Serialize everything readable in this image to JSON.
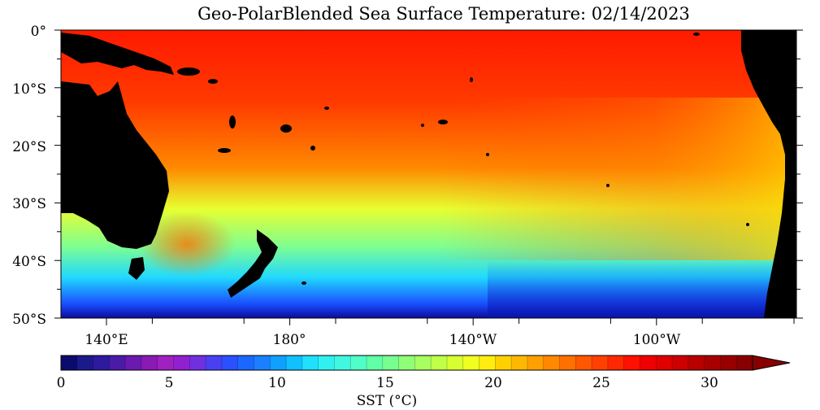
{
  "title": "Geo-PolarBlended Sea Surface Temperature: 02/14/2023",
  "lat_labels": [
    "0°",
    "10°S",
    "20°S",
    "30°S",
    "40°S",
    "50°S"
  ],
  "lon_labels": [
    "140°E",
    "180°",
    "140°W",
    "100°W"
  ],
  "colorbar": {
    "tick_labels": [
      "0",
      "5",
      "10",
      "15",
      "20",
      "25",
      "30"
    ],
    "label": "SST (°C)",
    "min": 0,
    "max": 32,
    "colors": [
      "#0b0b6e",
      "#1a1a8a",
      "#2e1a9e",
      "#4a1aa8",
      "#6a1aae",
      "#8a1ab4",
      "#a020c0",
      "#9020d0",
      "#7030e0",
      "#4a40f0",
      "#2a50ff",
      "#1a68ff",
      "#1a80ff",
      "#10a0ff",
      "#10c0ff",
      "#20e0ff",
      "#30f0f0",
      "#40f8e0",
      "#50ffc8",
      "#60ffa8",
      "#78ff90",
      "#90ff78",
      "#a8ff60",
      "#c0ff48",
      "#d8ff30",
      "#f0ff20",
      "#ffec10",
      "#ffd000",
      "#ffb800",
      "#ffa000",
      "#ff8800",
      "#ff7000",
      "#ff5800",
      "#ff4000",
      "#ff2800",
      "#ff1000",
      "#f00000",
      "#e00000",
      "#cc0000",
      "#b80000",
      "#a80000",
      "#980000",
      "#880000"
    ]
  },
  "map_colors": {
    "land": "#000000",
    "warm": "#ff1a00",
    "orange": "#ff6a00",
    "yellow": "#f0ff20",
    "green": "#80ff80",
    "cyan": "#20e0ff",
    "blue": "#1a40ff",
    "deep": "#0b0b9e"
  }
}
